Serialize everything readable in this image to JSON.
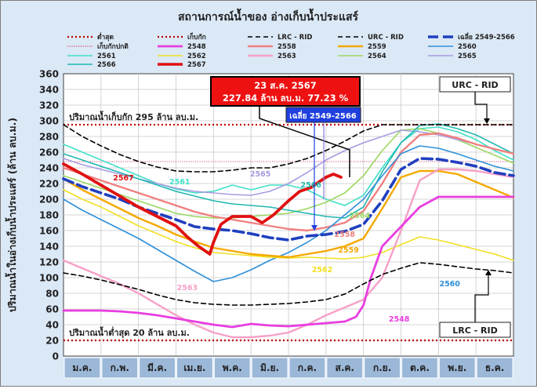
{
  "chart_data": {
    "type": "line",
    "title": "สถานการณ์น้ำของ อ่างเก็บน้ำประแสร์",
    "ylabel": "ปริมาณน้ำในอ่างเก็บน้ำประแสร์ (ล้าน ลบ.ม.)",
    "xlabel": "",
    "ylim": [
      0,
      360
    ],
    "yticks": [
      0,
      20,
      40,
      60,
      80,
      100,
      120,
      140,
      160,
      180,
      200,
      220,
      240,
      260,
      280,
      300,
      320,
      340,
      360
    ],
    "months": [
      "ม.ค.",
      "ก.พ.",
      "มี.ค.",
      "เม.ย.",
      "พ.ค.",
      "มิ.ย.",
      "ก.ค.",
      "ส.ค.",
      "ก.ย.",
      "ต.ค.",
      "พ.ย.",
      "ธ.ค."
    ],
    "x_unit": "month index (0 = 1 ม.ค., 12 = 31 ธ.ค.)",
    "grid": true,
    "legend_placement": "top",
    "reference_lines": [
      {
        "key": "min",
        "name": "ต่ำสุด",
        "value": 20,
        "color": "#c00000",
        "dash": "dot"
      },
      {
        "key": "cap",
        "name": "เก็บกัก",
        "value": 295,
        "color": "#c00000",
        "dash": "dot"
      },
      {
        "key": "normal",
        "name": "เก็บกักปกติ",
        "value": 248,
        "color": "#d4477a",
        "dash": "fine"
      }
    ],
    "series": [
      {
        "key": "lrc",
        "name": "LRC - RID",
        "color": "#000000",
        "width": 1.6,
        "dash": "6,4",
        "x": [
          0,
          0.5,
          1,
          1.5,
          2,
          2.5,
          3,
          3.5,
          4,
          4.5,
          5,
          5.5,
          6,
          6.5,
          7,
          7.5,
          8,
          8.5,
          9,
          9.5,
          10,
          10.5,
          11,
          11.5,
          12
        ],
        "y": [
          106,
          102,
          97,
          91,
          85,
          78,
          72,
          68,
          66,
          65,
          65,
          66,
          67,
          69,
          72,
          79,
          92,
          104,
          112,
          119,
          117,
          114,
          111,
          109,
          106
        ]
      },
      {
        "key": "urc",
        "name": "URC - RID",
        "color": "#000000",
        "width": 1.6,
        "dash": "6,4",
        "x": [
          0,
          0.5,
          1,
          1.5,
          2,
          2.5,
          3,
          3.5,
          4,
          4.5,
          5,
          5.5,
          6,
          6.5,
          7,
          7.5,
          8,
          8.5,
          9,
          9.5,
          10,
          10.5,
          11,
          11.5,
          12
        ],
        "y": [
          295,
          280,
          268,
          257,
          248,
          241,
          236,
          235,
          235,
          237,
          240,
          240,
          245,
          252,
          262,
          274,
          287,
          295,
          295,
          295,
          295,
          295,
          295,
          295,
          295
        ]
      },
      {
        "key": "avg",
        "name": "เฉลี่ย 2549-2566",
        "color": "#1f3fbf",
        "width": 3.6,
        "dash": "13,6",
        "x": [
          0,
          0.5,
          1,
          1.5,
          2,
          2.5,
          3,
          3.5,
          4,
          4.5,
          5,
          5.5,
          6,
          6.5,
          7,
          7.5,
          8,
          8.5,
          9,
          9.5,
          10,
          10.5,
          11,
          11.5,
          12
        ],
        "y": [
          226,
          216,
          208,
          200,
          190,
          182,
          174,
          165,
          162,
          160,
          156,
          151,
          148,
          153,
          155,
          159,
          168,
          198,
          238,
          252,
          251,
          247,
          242,
          234,
          230
        ]
      },
      {
        "key": "s2548",
        "name": "2548",
        "color": "#e83ee0",
        "width": 2.8,
        "dash": "",
        "x": [
          0,
          0.5,
          1,
          1.5,
          2,
          2.5,
          3,
          3.5,
          4,
          4.5,
          5,
          5.5,
          6,
          6.5,
          7,
          7.5,
          7.8,
          8,
          8.2,
          8.5,
          9,
          9.5,
          10,
          10.5,
          11,
          11.5,
          12
        ],
        "y": [
          58,
          58,
          58,
          57,
          55,
          52,
          48,
          44,
          40,
          37,
          41,
          39,
          38,
          40,
          42,
          44,
          50,
          65,
          100,
          140,
          165,
          190,
          203,
          203,
          203,
          203,
          203
        ]
      },
      {
        "key": "s2558",
        "name": "2558",
        "color": "#f08080",
        "width": 2.4,
        "dash": "",
        "x": [
          0,
          0.5,
          1,
          1.5,
          2,
          2.5,
          3,
          3.5,
          4,
          4.5,
          5,
          5.5,
          6,
          6.5,
          7,
          7.5,
          8,
          8.5,
          9,
          9.5,
          10,
          10.5,
          11,
          11.5,
          12
        ],
        "y": [
          240,
          232,
          224,
          216,
          208,
          200,
          192,
          184,
          178,
          174,
          170,
          166,
          162,
          160,
          164,
          170,
          185,
          220,
          260,
          282,
          284,
          278,
          270,
          264,
          258
        ]
      },
      {
        "key": "s2559",
        "name": "2559",
        "color": "#f4a800",
        "width": 2.4,
        "dash": "",
        "x": [
          0,
          0.5,
          1,
          1.5,
          2,
          2.5,
          3,
          3.5,
          4,
          4.5,
          5,
          5.5,
          6,
          6.5,
          7,
          7.5,
          8,
          8.5,
          9,
          9.5,
          10,
          10.5,
          11,
          11.5,
          12
        ],
        "y": [
          226,
          212,
          200,
          188,
          176,
          166,
          155,
          146,
          138,
          134,
          130,
          128,
          126,
          130,
          134,
          140,
          150,
          188,
          228,
          236,
          236,
          232,
          222,
          212,
          202
        ]
      },
      {
        "key": "s2560",
        "name": "2560",
        "color": "#2e8fd8",
        "width": 1.6,
        "dash": "",
        "x": [
          0,
          0.5,
          1,
          1.5,
          2,
          2.5,
          3,
          3.5,
          4,
          4.5,
          5,
          5.5,
          6,
          6.5,
          7,
          7.5,
          8,
          8.5,
          9,
          9.5,
          10,
          10.5,
          11,
          11.5,
          12
        ],
        "y": [
          200,
          186,
          174,
          162,
          150,
          136,
          122,
          108,
          95,
          100,
          110,
          122,
          132,
          145,
          160,
          180,
          200,
          230,
          258,
          268,
          265,
          258,
          250,
          242,
          236
        ]
      },
      {
        "key": "s2561",
        "name": "2561",
        "color": "#40e0c8",
        "width": 1.6,
        "dash": "",
        "x": [
          0,
          0.5,
          1,
          1.5,
          2,
          2.5,
          3,
          3.5,
          4,
          4.5,
          5,
          5.5,
          6,
          6.5,
          7,
          7.5,
          8,
          8.5,
          9,
          9.5,
          10,
          10.5,
          11,
          11.5,
          12
        ],
        "y": [
          270,
          260,
          250,
          240,
          230,
          220,
          213,
          208,
          210,
          218,
          212,
          218,
          218,
          212,
          200,
          192,
          205,
          240,
          272,
          290,
          292,
          286,
          276,
          262,
          250
        ]
      },
      {
        "key": "s2562",
        "name": "2562",
        "color": "#f0e020",
        "width": 1.6,
        "dash": "",
        "x": [
          0,
          0.5,
          1,
          1.5,
          2,
          2.5,
          3,
          3.5,
          4,
          4.5,
          5,
          5.5,
          6,
          6.5,
          7,
          7.5,
          8,
          8.5,
          9,
          9.5,
          10,
          10.5,
          11,
          11.5,
          12
        ],
        "y": [
          212,
          200,
          190,
          178,
          166,
          156,
          146,
          138,
          132,
          130,
          128,
          126,
          125,
          126,
          125,
          124,
          126,
          132,
          142,
          152,
          148,
          142,
          136,
          130,
          122
        ]
      },
      {
        "key": "s2563",
        "name": "2563",
        "color": "#f6a0c8",
        "width": 2.4,
        "dash": "",
        "x": [
          0,
          0.5,
          1,
          1.5,
          2,
          2.5,
          3,
          3.5,
          4,
          4.5,
          5,
          5.5,
          6,
          6.5,
          7,
          7.5,
          8,
          8.5,
          9,
          9.5,
          10,
          10.5,
          11,
          11.5,
          12
        ],
        "y": [
          122,
          112,
          102,
          92,
          80,
          66,
          52,
          40,
          30,
          24,
          24,
          26,
          30,
          40,
          52,
          62,
          72,
          100,
          160,
          224,
          238,
          238,
          236,
          232,
          228
        ]
      },
      {
        "key": "s2564",
        "name": "2564",
        "color": "#9bd860",
        "width": 1.6,
        "dash": "",
        "x": [
          0,
          0.5,
          1,
          1.5,
          2,
          2.5,
          3,
          3.5,
          4,
          4.5,
          5,
          5.5,
          6,
          6.5,
          7,
          7.5,
          8,
          8.5,
          9,
          9.5,
          10,
          10.5,
          11,
          11.5,
          12
        ],
        "y": [
          230,
          222,
          214,
          206,
          198,
          190,
          182,
          178,
          176,
          176,
          178,
          180,
          182,
          188,
          196,
          208,
          230,
          262,
          288,
          290,
          284,
          276,
          266,
          256,
          246
        ]
      },
      {
        "key": "s2565",
        "name": "2565",
        "color": "#a89be0",
        "width": 1.6,
        "dash": "",
        "x": [
          0,
          0.5,
          1,
          1.5,
          2,
          2.5,
          3,
          3.5,
          4,
          4.5,
          5,
          5.5,
          6,
          6.5,
          7,
          7.5,
          8,
          8.5,
          9,
          9.5,
          10,
          10.5,
          11,
          11.5,
          12
        ],
        "y": [
          252,
          244,
          238,
          232,
          226,
          220,
          214,
          210,
          208,
          206,
          205,
          210,
          220,
          234,
          250,
          262,
          272,
          280,
          288,
          286,
          282,
          276,
          270,
          264,
          258
        ]
      },
      {
        "key": "s2566",
        "name": "2566",
        "color": "#20b8b0",
        "width": 1.6,
        "dash": "",
        "x": [
          0,
          0.5,
          1,
          1.5,
          2,
          2.5,
          3,
          3.5,
          4,
          4.5,
          5,
          5.5,
          6,
          6.5,
          7,
          7.5,
          8,
          8.5,
          9,
          9.5,
          10,
          10.5,
          11,
          11.5,
          12
        ],
        "y": [
          258,
          250,
          242,
          234,
          226,
          218,
          210,
          204,
          198,
          194,
          192,
          190,
          186,
          182,
          178,
          176,
          190,
          235,
          272,
          294,
          296,
          290,
          282,
          270,
          258
        ]
      },
      {
        "key": "s2567",
        "name": "2567",
        "color": "#e01010",
        "width": 3.8,
        "dash": "",
        "x": [
          0,
          0.5,
          1,
          1.5,
          2,
          2.5,
          3,
          3.3,
          3.6,
          3.9,
          4,
          4.2,
          4.5,
          5,
          5.3,
          5.6,
          6,
          6.3,
          6.6,
          7,
          7.2,
          7.4
        ],
        "y": [
          245,
          232,
          218,
          204,
          190,
          178,
          166,
          152,
          140,
          130,
          145,
          168,
          178,
          178,
          170,
          180,
          198,
          210,
          215,
          228,
          232,
          228
        ]
      }
    ],
    "annotations": [
      {
        "key": "current",
        "line1": "23 ส.ค. 2567",
        "line2": "227.84 ล้าน ลบ.ม. 77.23 %"
      },
      {
        "key": "cap_label",
        "text": "ปริมาณน้ำเก็บกัก 295 ล้าน ลบ.ม."
      },
      {
        "key": "min_label",
        "text": "ปริมาณน้ำต่ำสุด 20 ล้าน ลบ.ม."
      },
      {
        "key": "urc_box",
        "text": "URC - RID"
      },
      {
        "key": "lrc_box",
        "text": "LRC - RID"
      },
      {
        "key": "avg_box",
        "text": "เฉลี่ย 2549-2566"
      }
    ]
  }
}
